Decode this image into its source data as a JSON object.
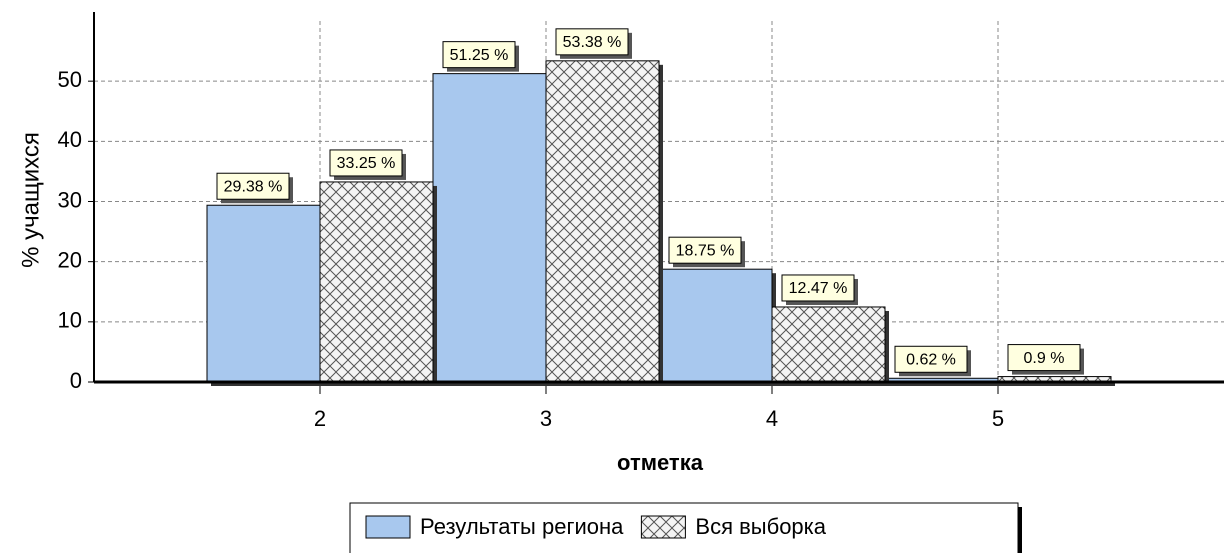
{
  "chart_data": {
    "type": "bar",
    "x_label": "отметка",
    "y_label": "% учащихся",
    "x": [
      2,
      3,
      4,
      5
    ],
    "series": [
      {
        "name": "Результаты региона",
        "color": "#a8c8ee",
        "values": [
          29.38,
          51.25,
          18.75,
          0.62
        ],
        "value_labels": [
          "29.38 %",
          "51.25 %",
          "18.75 %",
          "0.62 %"
        ]
      },
      {
        "name": "Вся выборка",
        "color": "#ffffff",
        "pattern": "crosshatch",
        "values": [
          33.25,
          53.38,
          12.47,
          0.9
        ],
        "value_labels": [
          "33.25 %",
          "53.38 %",
          "12.47 %",
          "0.9 %"
        ]
      }
    ],
    "xlim": [
      1,
      6
    ],
    "xticks": [
      2,
      3,
      4,
      5
    ],
    "ylim": [
      0,
      60
    ],
    "yticks": [
      0,
      10,
      20,
      30,
      40,
      50
    ],
    "grid": true,
    "legend": "bottom"
  }
}
